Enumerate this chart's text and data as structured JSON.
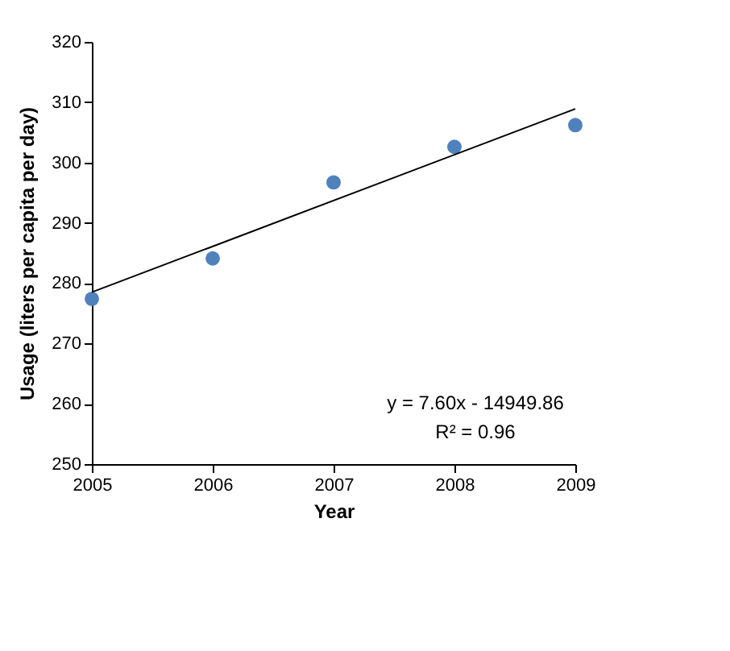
{
  "chart_data": {
    "type": "scatter",
    "xlabel": "Year",
    "ylabel": "Usage (liters per capita per day)",
    "x": [
      2005,
      2006,
      2007,
      2008,
      2009
    ],
    "series": [
      {
        "color": "#4f81bd",
        "values": [
          277.4,
          284.1,
          296.7,
          302.6,
          306.2
        ],
        "marker": "circle"
      },
      {
        "type": "line",
        "color": "#000000",
        "x": [
          2005,
          2009
        ],
        "values": [
          278.5,
          308.9
        ]
      }
    ],
    "xlim": [
      2005,
      2009
    ],
    "xticks": [
      2005,
      2006,
      2007,
      2008,
      2009
    ],
    "ylim": [
      250,
      320
    ],
    "yticks": [
      250,
      260,
      270,
      280,
      290,
      300,
      310,
      320
    ],
    "grid": false,
    "annotations": [
      "y = 7.60x - 14949.86",
      "R² = 0.96"
    ]
  }
}
